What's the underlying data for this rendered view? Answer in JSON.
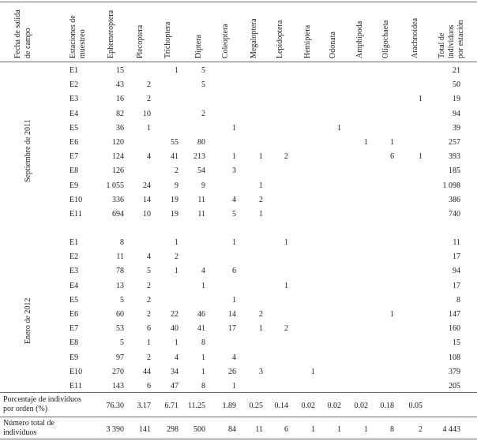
{
  "table": {
    "header": {
      "fecha": [
        "Fecha de salida",
        "de campo"
      ],
      "estaciones": [
        "Estaciones de",
        "muestreo"
      ],
      "orders": [
        "Ephemeroptera",
        "Plecoptera",
        "Trichoptera",
        "Diptera",
        "Coleoptera",
        "Megaloptera",
        "Lepidoptera",
        "Hemiptera",
        "Odonata",
        "Amphipoda",
        "Oligochaeta",
        "Arachnoidea"
      ],
      "total": [
        "Total de",
        "individuos",
        "por estación"
      ]
    },
    "groups": [
      {
        "label": "Septiembre de 2011",
        "rows": [
          {
            "station": "E1",
            "values": [
              "15",
              "",
              "1",
              "5",
              "",
              "",
              "",
              "",
              "",
              "",
              "",
              ""
            ],
            "total": "21"
          },
          {
            "station": "E2",
            "values": [
              "43",
              "2",
              "",
              "5",
              "",
              "",
              "",
              "",
              "",
              "",
              "",
              ""
            ],
            "total": "50"
          },
          {
            "station": "E3",
            "values": [
              "16",
              "2",
              "",
              "",
              "",
              "",
              "",
              "",
              "",
              "",
              "",
              "1"
            ],
            "total": "19"
          },
          {
            "station": "E4",
            "values": [
              "82",
              "10",
              "",
              "2",
              "",
              "",
              "",
              "",
              "",
              "",
              "",
              ""
            ],
            "total": "94"
          },
          {
            "station": "E5",
            "values": [
              "36",
              "1",
              "",
              "",
              "1",
              "",
              "",
              "",
              "1",
              "",
              "",
              ""
            ],
            "total": "39"
          },
          {
            "station": "E6",
            "values": [
              "120",
              "",
              "55",
              "80",
              "",
              "",
              "",
              "",
              "",
              "1",
              "1",
              ""
            ],
            "total": "257"
          },
          {
            "station": "E7",
            "values": [
              "124",
              "4",
              "41",
              "213",
              "1",
              "1",
              "2",
              "",
              "",
              "",
              "6",
              "1"
            ],
            "total": "393"
          },
          {
            "station": "E8",
            "values": [
              "126",
              "",
              "2",
              "54",
              "3",
              "",
              "",
              "",
              "",
              "",
              "",
              ""
            ],
            "total": "185"
          },
          {
            "station": "E9",
            "values": [
              "1 055",
              "24",
              "9",
              "9",
              "",
              "1",
              "",
              "",
              "",
              "",
              "",
              ""
            ],
            "total": "1 098"
          },
          {
            "station": "E10",
            "values": [
              "336",
              "14",
              "19",
              "11",
              "4",
              "2",
              "",
              "",
              "",
              "",
              "",
              ""
            ],
            "total": "386"
          },
          {
            "station": "E11",
            "values": [
              "694",
              "10",
              "19",
              "11",
              "5",
              "1",
              "",
              "",
              "",
              "",
              "",
              ""
            ],
            "total": "740"
          }
        ]
      },
      {
        "label": "Enero de 2012",
        "rows": [
          {
            "station": "E1",
            "values": [
              "8",
              "",
              "1",
              "",
              "1",
              "",
              "1",
              "",
              "",
              "",
              "",
              ""
            ],
            "total": "11"
          },
          {
            "station": "E2",
            "values": [
              "11",
              "4",
              "2",
              "",
              "",
              "",
              "",
              "",
              "",
              "",
              "",
              ""
            ],
            "total": "17"
          },
          {
            "station": "E3",
            "values": [
              "78",
              "5",
              "1",
              "4",
              "6",
              "",
              "",
              "",
              "",
              "",
              "",
              ""
            ],
            "total": "94"
          },
          {
            "station": "E4",
            "values": [
              "13",
              "2",
              "",
              "1",
              "",
              "",
              "1",
              "",
              "",
              "",
              "",
              ""
            ],
            "total": "17"
          },
          {
            "station": "E5",
            "values": [
              "5",
              "2",
              "",
              "",
              "1",
              "",
              "",
              "",
              "",
              "",
              "",
              ""
            ],
            "total": "8"
          },
          {
            "station": "E6",
            "values": [
              "60",
              "2",
              "22",
              "46",
              "14",
              "2",
              "",
              "",
              "",
              "",
              "1",
              ""
            ],
            "total": "147"
          },
          {
            "station": "E7",
            "values": [
              "53",
              "6",
              "40",
              "41",
              "17",
              "1",
              "2",
              "",
              "",
              "",
              "",
              ""
            ],
            "total": "160"
          },
          {
            "station": "E8",
            "values": [
              "5",
              "1",
              "1",
              "8",
              "",
              "",
              "",
              "",
              "",
              "",
              "",
              ""
            ],
            "total": "15"
          },
          {
            "station": "E9",
            "values": [
              "97",
              "2",
              "4",
              "1",
              "4",
              "",
              "",
              "",
              "",
              "",
              "",
              ""
            ],
            "total": "108"
          },
          {
            "station": "E10",
            "values": [
              "270",
              "44",
              "34",
              "1",
              "26",
              "3",
              "",
              "1",
              "",
              "",
              "",
              ""
            ],
            "total": "379"
          },
          {
            "station": "E11",
            "values": [
              "143",
              "6",
              "47",
              "8",
              "1",
              "",
              "",
              "",
              "",
              "",
              "",
              ""
            ],
            "total": "205"
          }
        ]
      }
    ],
    "footer": [
      {
        "label": [
          "Porcentaje de individuos",
          "por orden (%)"
        ],
        "values": [
          "76.30",
          "3.17",
          "6.71",
          "11.25",
          "1.89",
          "0.25",
          "0.14",
          "0.02",
          "0.02",
          "0.02",
          "0.18",
          "0.05"
        ],
        "total": ""
      },
      {
        "label": [
          "Número total de",
          "individuos"
        ],
        "values": [
          "3 390",
          "141",
          "298",
          "500",
          "84",
          "11",
          "6",
          "1",
          "1",
          "1",
          "8",
          "2"
        ],
        "total": "4 443"
      }
    ]
  }
}
